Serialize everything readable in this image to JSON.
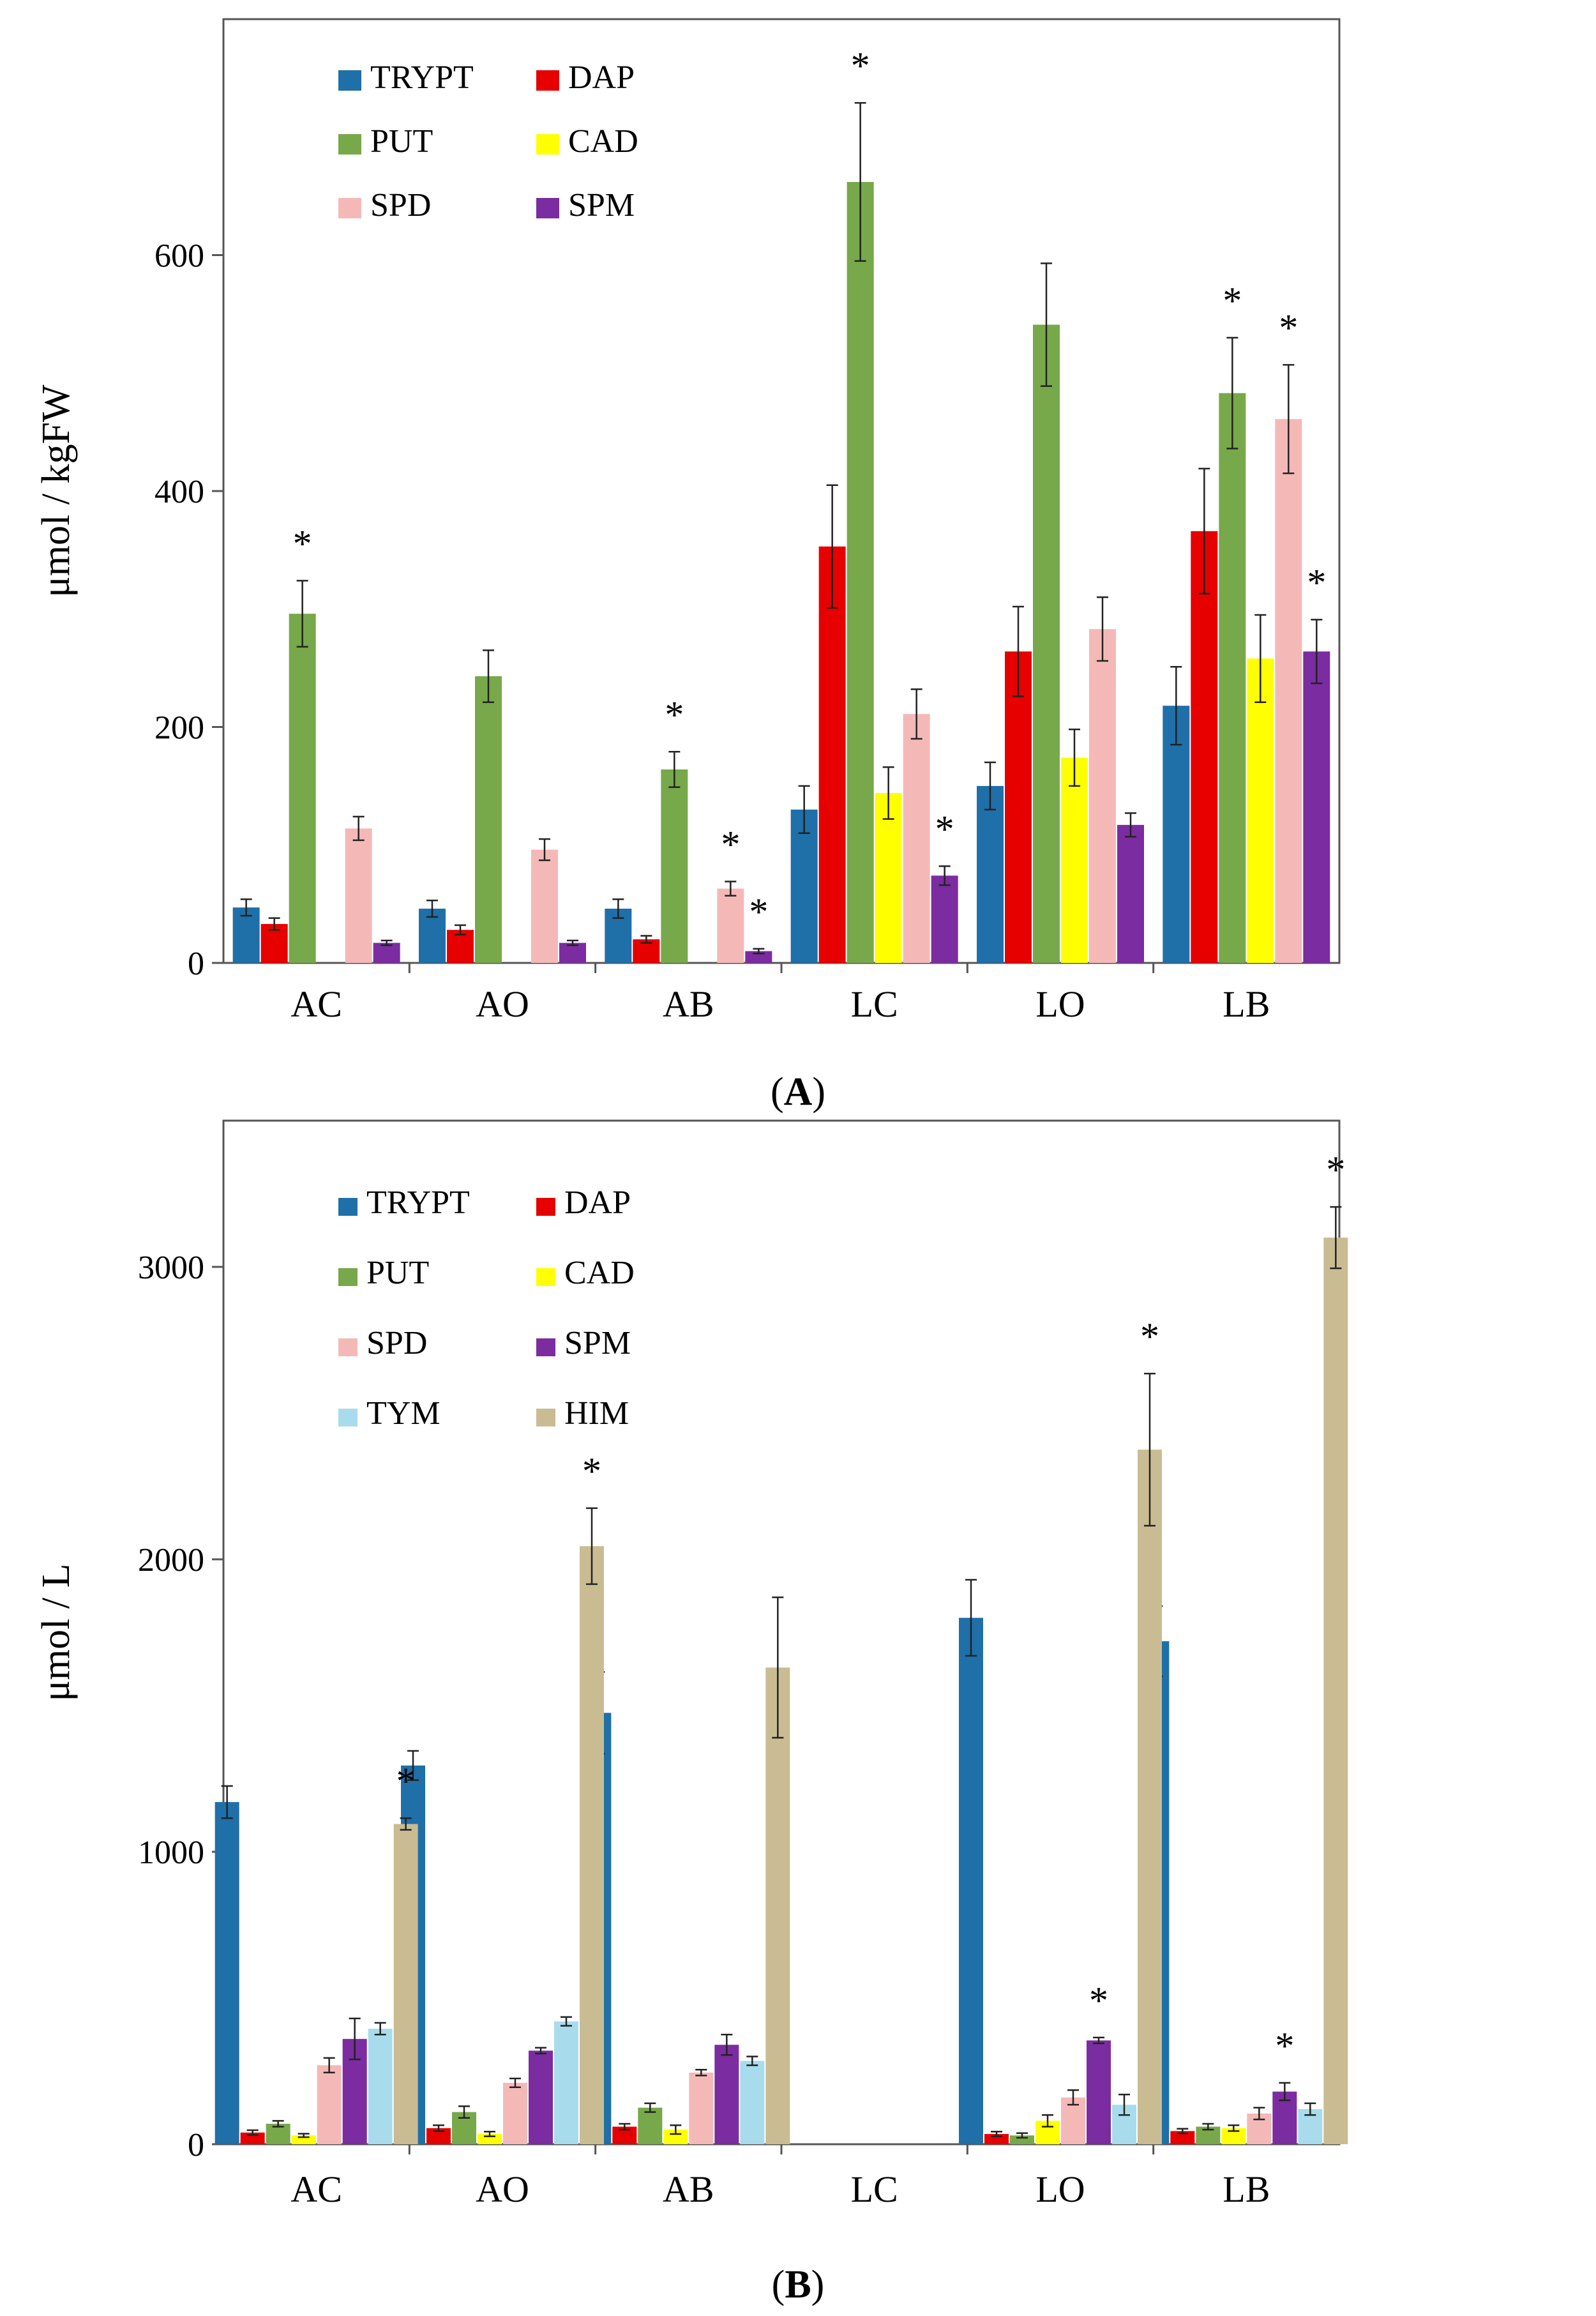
{
  "chart_data": [
    {
      "type": "bar",
      "panel_label": "A",
      "ylabel": "μmol / kgFW",
      "ylim": [
        0,
        800
      ],
      "yticks": [
        0,
        200,
        400,
        600
      ],
      "categories": [
        "AC",
        "AO",
        "AB",
        "LC",
        "LO",
        "LB"
      ],
      "legend_position": "top-left",
      "series": [
        {
          "name": "TRYPT",
          "color": "#1f6fa8",
          "values": [
            47,
            46,
            46,
            130,
            150,
            218
          ],
          "errors": [
            7,
            7,
            8,
            20,
            20,
            33
          ],
          "significant": [
            false,
            false,
            false,
            false,
            false,
            false
          ]
        },
        {
          "name": "DAP",
          "color": "#e60000",
          "values": [
            33,
            28,
            20,
            353,
            264,
            366
          ],
          "errors": [
            5,
            4,
            3,
            52,
            38,
            53
          ],
          "significant": [
            false,
            false,
            false,
            false,
            false,
            false
          ]
        },
        {
          "name": "PUT",
          "color": "#77a84a",
          "values": [
            296,
            243,
            164,
            662,
            541,
            483
          ],
          "errors": [
            28,
            22,
            15,
            67,
            52,
            47
          ],
          "significant": [
            true,
            false,
            true,
            true,
            false,
            true
          ]
        },
        {
          "name": "CAD",
          "color": "#ffff00",
          "values": [
            0,
            0,
            0,
            144,
            174,
            258
          ],
          "errors": [
            0,
            0,
            0,
            22,
            24,
            37
          ],
          "significant": [
            false,
            false,
            false,
            false,
            false,
            false
          ]
        },
        {
          "name": "SPD",
          "color": "#f4b9b7",
          "values": [
            114,
            96,
            63,
            211,
            283,
            461
          ],
          "errors": [
            10,
            9,
            6,
            21,
            27,
            46
          ],
          "significant": [
            false,
            false,
            true,
            false,
            false,
            true
          ]
        },
        {
          "name": "SPM",
          "color": "#7b2ca0",
          "values": [
            17,
            17,
            10,
            74,
            117,
            264
          ],
          "errors": [
            2,
            2,
            2,
            8,
            10,
            27
          ],
          "significant": [
            false,
            false,
            true,
            true,
            false,
            true
          ]
        }
      ]
    },
    {
      "type": "bar",
      "panel_label": "B",
      "ylabel": "μmol / L",
      "ylim": [
        0,
        3500
      ],
      "yticks": [
        0,
        1000,
        2000,
        3000
      ],
      "categories": [
        "AC",
        "AO",
        "AB",
        "LC",
        "LO",
        "LB"
      ],
      "legend_position": "top-left",
      "series": [
        {
          "name": "TRYPT",
          "color": "#1f6fa8",
          "values": [
            1170,
            1295,
            1475,
            0,
            1800,
            1720
          ],
          "errors": [
            55,
            50,
            140,
            0,
            130,
            120
          ],
          "significant": [
            false,
            false,
            false,
            false,
            false,
            false
          ]
        },
        {
          "name": "DAP",
          "color": "#e60000",
          "values": [
            40,
            55,
            60,
            0,
            35,
            45
          ],
          "errors": [
            8,
            10,
            10,
            0,
            8,
            8
          ],
          "significant": [
            false,
            false,
            false,
            false,
            false,
            false
          ]
        },
        {
          "name": "PUT",
          "color": "#77a84a",
          "values": [
            70,
            110,
            125,
            0,
            30,
            60
          ],
          "errors": [
            10,
            20,
            15,
            0,
            8,
            10
          ],
          "significant": [
            false,
            false,
            false,
            false,
            false,
            false
          ]
        },
        {
          "name": "CAD",
          "color": "#ffff00",
          "values": [
            30,
            35,
            50,
            0,
            80,
            55
          ],
          "errors": [
            6,
            8,
            15,
            0,
            20,
            10
          ],
          "significant": [
            false,
            false,
            false,
            false,
            false,
            false
          ]
        },
        {
          "name": "SPD",
          "color": "#f4b9b7",
          "values": [
            270,
            210,
            245,
            0,
            160,
            105
          ],
          "errors": [
            25,
            15,
            10,
            0,
            25,
            20
          ],
          "significant": [
            false,
            false,
            false,
            false,
            false,
            false
          ]
        },
        {
          "name": "SPM",
          "color": "#7b2ca0",
          "values": [
            360,
            320,
            340,
            0,
            355,
            180
          ],
          "errors": [
            70,
            10,
            35,
            0,
            10,
            30
          ],
          "significant": [
            false,
            false,
            false,
            false,
            true,
            true
          ]
        },
        {
          "name": "TYM",
          "color": "#a8dcec",
          "values": [
            395,
            420,
            285,
            0,
            135,
            120
          ],
          "errors": [
            20,
            15,
            15,
            0,
            35,
            20
          ],
          "significant": [
            false,
            false,
            false,
            false,
            false,
            false
          ]
        },
        {
          "name": "HIM",
          "color": "#c9bc92",
          "values": [
            1095,
            2045,
            1630,
            0,
            2375,
            3100
          ],
          "errors": [
            20,
            130,
            240,
            0,
            260,
            105
          ],
          "significant": [
            true,
            true,
            false,
            false,
            true,
            true
          ]
        }
      ]
    }
  ],
  "significance_marker": "*"
}
